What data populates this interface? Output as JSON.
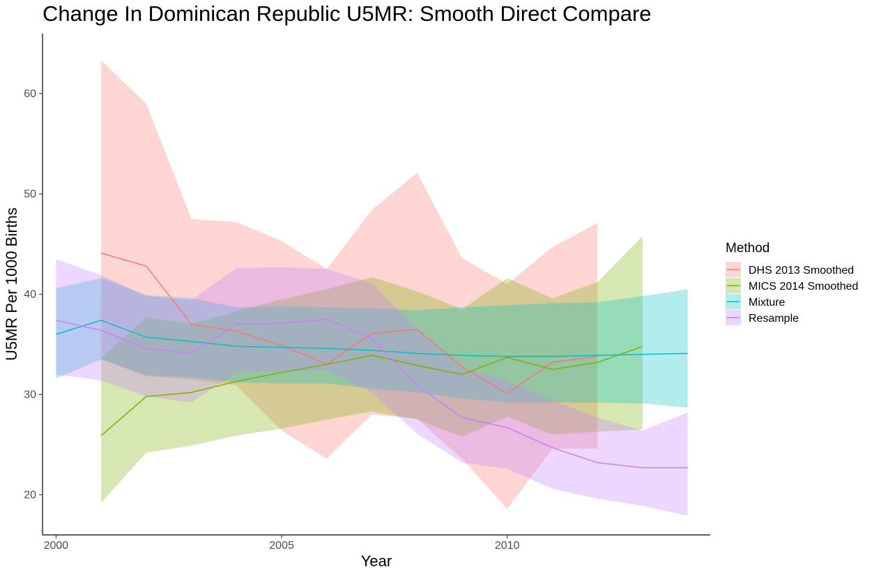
{
  "chart_data": {
    "type": "area",
    "title": "Change In Dominican Republic U5MR: Smooth Direct Compare",
    "xlabel": "Year",
    "ylabel": "U5MR Per 1000 Births",
    "xlim": [
      1999.7,
      2014.5
    ],
    "ylim": [
      16,
      66
    ],
    "xticks": [
      2000,
      2005,
      2010
    ],
    "yticks": [
      20,
      30,
      40,
      50,
      60
    ],
    "grid": false,
    "legend": {
      "title": "Method",
      "position": "right"
    },
    "series": [
      {
        "name": "DHS 2013 Smoothed",
        "color": "#F8766D",
        "x": [
          2001,
          2002,
          2003,
          2004,
          2005,
          2006,
          2007,
          2008,
          2009,
          2010,
          2011,
          2012
        ],
        "y": [
          44.1,
          42.8,
          37.0,
          36.3,
          34.9,
          33.0,
          36.1,
          36.5,
          32.8,
          30.1,
          33.2,
          33.8
        ],
        "lower": [
          33.6,
          31.8,
          31.5,
          30.9,
          26.4,
          23.6,
          28.0,
          27.6,
          23.6,
          18.6,
          24.6,
          24.6
        ],
        "upper": [
          63.3,
          59.0,
          47.5,
          47.2,
          45.3,
          42.5,
          48.4,
          52.1,
          43.6,
          41.0,
          44.7,
          47.1
        ]
      },
      {
        "name": "MICS 2014 Smoothed",
        "color": "#7CAE00",
        "x": [
          2001,
          2002,
          2003,
          2004,
          2005,
          2006,
          2007,
          2008,
          2009,
          2010,
          2011,
          2012,
          2013
        ],
        "y": [
          25.9,
          29.8,
          30.2,
          31.3,
          32.2,
          33.0,
          33.9,
          32.9,
          32.0,
          33.7,
          32.5,
          33.2,
          34.8
        ],
        "lower": [
          19.2,
          24.2,
          24.9,
          25.9,
          26.6,
          27.5,
          28.3,
          27.5,
          25.8,
          27.8,
          26.0,
          26.3,
          26.5
        ],
        "upper": [
          33.6,
          37.7,
          37.0,
          38.3,
          39.5,
          40.5,
          41.7,
          40.3,
          38.5,
          41.6,
          39.6,
          41.2,
          45.8
        ]
      },
      {
        "name": "Mixture",
        "color": "#00BFC4",
        "x": [
          2000,
          2001,
          2002,
          2003,
          2004,
          2005,
          2006,
          2007,
          2008,
          2009,
          2010,
          2011,
          2012,
          2013,
          2014
        ],
        "y": [
          36.0,
          37.4,
          35.7,
          35.3,
          34.8,
          34.7,
          34.6,
          34.4,
          34.1,
          33.9,
          33.8,
          33.8,
          33.9,
          34.0,
          34.1
        ],
        "lower": [
          31.6,
          33.5,
          31.9,
          31.7,
          31.2,
          31.1,
          31.1,
          30.6,
          30.2,
          29.6,
          29.2,
          29.2,
          29.2,
          29.1,
          28.7
        ],
        "upper": [
          40.6,
          41.6,
          39.9,
          39.6,
          38.7,
          38.8,
          38.7,
          38.6,
          38.4,
          38.7,
          38.9,
          39.1,
          39.2,
          39.8,
          40.5
        ]
      },
      {
        "name": "Resample",
        "color": "#C77CFF",
        "x": [
          2000,
          2001,
          2002,
          2003,
          2004,
          2005,
          2006,
          2007,
          2008,
          2009,
          2010,
          2011,
          2012,
          2013,
          2014
        ],
        "y": [
          37.4,
          36.4,
          34.6,
          34.1,
          37.0,
          37.1,
          37.5,
          35.6,
          30.9,
          27.7,
          26.7,
          24.7,
          23.2,
          22.7,
          22.7
        ],
        "lower": [
          32.0,
          31.4,
          29.8,
          29.2,
          32.2,
          32.3,
          32.4,
          30.2,
          26.1,
          23.2,
          22.6,
          20.6,
          19.6,
          18.9,
          17.9
        ],
        "upper": [
          43.5,
          41.9,
          39.8,
          39.4,
          42.6,
          42.7,
          42.5,
          41.1,
          36.5,
          32.7,
          31.4,
          29.4,
          27.7,
          26.4,
          28.2
        ]
      }
    ]
  }
}
